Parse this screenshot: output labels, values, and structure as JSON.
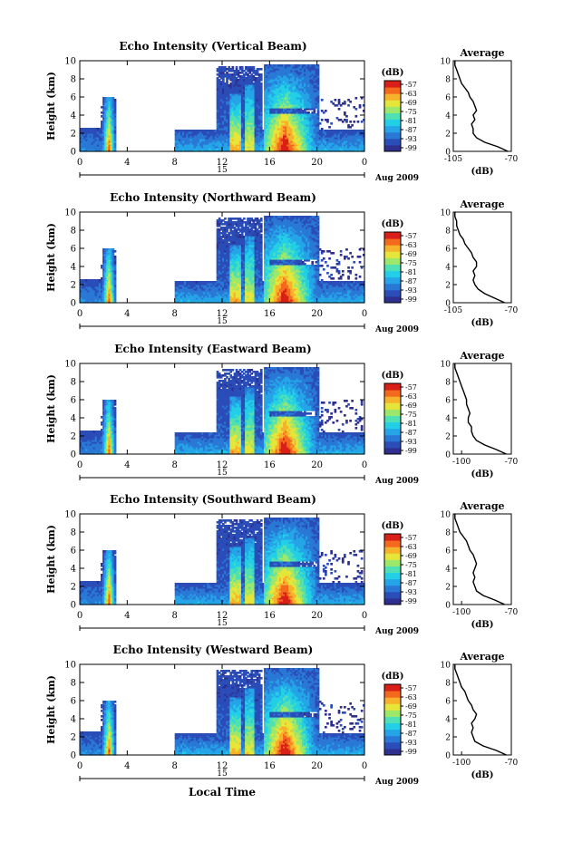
{
  "figure": {
    "x_label": "Local Time",
    "date_label": "15",
    "date_suffix": "Aug 2009",
    "colorbar_unit": "(dB)",
    "avg_title": "Average",
    "avg_xlabel": "(dB)"
  },
  "colors": {
    "scale": [
      "#2e2f8f",
      "#2a4db8",
      "#2a78d6",
      "#25a5e8",
      "#22cfe6",
      "#4fe0b4",
      "#9de86a",
      "#e6e63a",
      "#f7b22c",
      "#f36a1f",
      "#d92018"
    ]
  },
  "chart_data": [
    {
      "type": "heatmap",
      "title": "Echo Intensity (Vertical Beam)",
      "ylabel": "Height (km)",
      "xlabel": "Local Time",
      "x_ticks": [
        "0",
        "4",
        "8",
        "12",
        "16",
        "20",
        "0"
      ],
      "xlim": [
        0,
        24
      ],
      "y_ticks": [
        "0",
        "2",
        "4",
        "6",
        "8",
        "10"
      ],
      "ylim": [
        0,
        10
      ],
      "colorbar_ticks": [
        "-57",
        "-63",
        "-69",
        "-75",
        "-81",
        "-87",
        "-93",
        "-99"
      ],
      "avg": {
        "xlim": [
          -105,
          -70
        ],
        "x_ticks": [
          "-105",
          "-70"
        ],
        "y_ticks": [
          "0",
          "2",
          "4",
          "6",
          "8",
          "10"
        ],
        "profile": [
          [
            -72,
            0
          ],
          [
            -78,
            0.5
          ],
          [
            -86,
            1
          ],
          [
            -91,
            1.5
          ],
          [
            -93,
            2
          ],
          [
            -93,
            2.5
          ],
          [
            -94,
            3
          ],
          [
            -92,
            3.5
          ],
          [
            -93,
            4
          ],
          [
            -91,
            4.5
          ],
          [
            -92,
            5
          ],
          [
            -93,
            5.5
          ],
          [
            -95,
            6
          ],
          [
            -96,
            6.5
          ],
          [
            -98,
            7
          ],
          [
            -100,
            7.5
          ],
          [
            -101,
            8
          ],
          [
            -102,
            8.5
          ],
          [
            -103,
            9
          ],
          [
            -104,
            9.5
          ],
          [
            -104,
            10
          ]
        ]
      }
    },
    {
      "type": "heatmap",
      "title": "Echo Intensity (Northward Beam)",
      "ylabel": "Height (km)",
      "xlabel": "Local Time",
      "x_ticks": [
        "0",
        "4",
        "8",
        "12",
        "16",
        "20",
        "0"
      ],
      "xlim": [
        0,
        24
      ],
      "y_ticks": [
        "0",
        "2",
        "4",
        "6",
        "8",
        "10"
      ],
      "ylim": [
        0,
        10
      ],
      "colorbar_ticks": [
        "-57",
        "-63",
        "-69",
        "-75",
        "-81",
        "-87",
        "-93",
        "-99"
      ],
      "avg": {
        "xlim": [
          -105,
          -70
        ],
        "x_ticks": [
          "-105",
          "-70"
        ],
        "y_ticks": [
          "0",
          "2",
          "4",
          "6",
          "8",
          "10"
        ],
        "profile": [
          [
            -74,
            0
          ],
          [
            -80,
            0.5
          ],
          [
            -86,
            1
          ],
          [
            -90,
            1.5
          ],
          [
            -92,
            2
          ],
          [
            -93,
            2.5
          ],
          [
            -92,
            3
          ],
          [
            -93,
            3.5
          ],
          [
            -91,
            4
          ],
          [
            -91,
            4.5
          ],
          [
            -93,
            5
          ],
          [
            -94,
            5.5
          ],
          [
            -96,
            6
          ],
          [
            -98,
            6.5
          ],
          [
            -99,
            7
          ],
          [
            -101,
            7.5
          ],
          [
            -102,
            8
          ],
          [
            -103,
            8.5
          ],
          [
            -103,
            9
          ],
          [
            -104,
            9.5
          ],
          [
            -104,
            10
          ]
        ]
      }
    },
    {
      "type": "heatmap",
      "title": "Echo Intensity (Eastward Beam)",
      "ylabel": "Height (km)",
      "xlabel": "Local Time",
      "x_ticks": [
        "0",
        "4",
        "8",
        "12",
        "16",
        "20",
        "0"
      ],
      "xlim": [
        0,
        24
      ],
      "y_ticks": [
        "0",
        "2",
        "4",
        "6",
        "8",
        "10"
      ],
      "ylim": [
        0,
        10
      ],
      "colorbar_ticks": [
        "-57",
        "-63",
        "-69",
        "-75",
        "-81",
        "-87",
        "-93",
        "-99"
      ],
      "avg": {
        "xlim": [
          -105,
          -70
        ],
        "x_ticks": [
          "-100",
          "-70"
        ],
        "y_ticks": [
          "0",
          "2",
          "4",
          "6",
          "8",
          "10"
        ],
        "profile": [
          [
            -73,
            0
          ],
          [
            -79,
            0.5
          ],
          [
            -86,
            1
          ],
          [
            -91,
            1.5
          ],
          [
            -93,
            2
          ],
          [
            -94,
            2.5
          ],
          [
            -94,
            3
          ],
          [
            -96,
            3.5
          ],
          [
            -96,
            4
          ],
          [
            -95,
            4.5
          ],
          [
            -96,
            5
          ],
          [
            -97,
            5.5
          ],
          [
            -97,
            6
          ],
          [
            -98,
            6.5
          ],
          [
            -99,
            7
          ],
          [
            -100,
            7.5
          ],
          [
            -101,
            8
          ],
          [
            -102,
            8.5
          ],
          [
            -103,
            9
          ],
          [
            -104,
            9.5
          ],
          [
            -104,
            10
          ]
        ]
      }
    },
    {
      "type": "heatmap",
      "title": "Echo Intensity (Southward Beam)",
      "ylabel": "Height (km)",
      "xlabel": "Local Time",
      "x_ticks": [
        "0",
        "4",
        "8",
        "12",
        "16",
        "20",
        "0"
      ],
      "xlim": [
        0,
        24
      ],
      "y_ticks": [
        "0",
        "2",
        "4",
        "6",
        "8",
        "10"
      ],
      "ylim": [
        0,
        10
      ],
      "colorbar_ticks": [
        "-57",
        "-63",
        "-69",
        "-75",
        "-81",
        "-87",
        "-93",
        "-99"
      ],
      "avg": {
        "xlim": [
          -105,
          -70
        ],
        "x_ticks": [
          "-100",
          "-70"
        ],
        "y_ticks": [
          "0",
          "2",
          "4",
          "6",
          "8",
          "10"
        ],
        "profile": [
          [
            -74,
            0
          ],
          [
            -80,
            0.5
          ],
          [
            -87,
            1
          ],
          [
            -91,
            1.5
          ],
          [
            -92,
            2
          ],
          [
            -93,
            2.5
          ],
          [
            -92,
            3
          ],
          [
            -93,
            3.5
          ],
          [
            -92,
            4
          ],
          [
            -91,
            4.5
          ],
          [
            -92,
            5
          ],
          [
            -93,
            5.5
          ],
          [
            -95,
            6
          ],
          [
            -96,
            6.5
          ],
          [
            -97,
            7
          ],
          [
            -99,
            7.5
          ],
          [
            -101,
            8
          ],
          [
            -102,
            8.5
          ],
          [
            -103,
            9
          ],
          [
            -104,
            9.5
          ],
          [
            -104,
            10
          ]
        ]
      }
    },
    {
      "type": "heatmap",
      "title": "Echo Intensity (Westward Beam)",
      "ylabel": "Height (km)",
      "xlabel": "Local Time",
      "x_ticks": [
        "0",
        "4",
        "8",
        "12",
        "16",
        "20",
        "0"
      ],
      "xlim": [
        0,
        24
      ],
      "y_ticks": [
        "0",
        "2",
        "4",
        "6",
        "8",
        "10"
      ],
      "ylim": [
        0,
        10
      ],
      "colorbar_ticks": [
        "-57",
        "-63",
        "-69",
        "-75",
        "-81",
        "-87",
        "-93",
        "-99"
      ],
      "avg": {
        "xlim": [
          -105,
          -70
        ],
        "x_ticks": [
          "-100",
          "-70"
        ],
        "y_ticks": [
          "0",
          "2",
          "4",
          "6",
          "8",
          "10"
        ],
        "profile": [
          [
            -73,
            0
          ],
          [
            -79,
            0.5
          ],
          [
            -87,
            1
          ],
          [
            -92,
            1.5
          ],
          [
            -93,
            2
          ],
          [
            -94,
            2.5
          ],
          [
            -93,
            3
          ],
          [
            -94,
            3.5
          ],
          [
            -92,
            4
          ],
          [
            -91,
            4.5
          ],
          [
            -93,
            5
          ],
          [
            -94,
            5.5
          ],
          [
            -96,
            6
          ],
          [
            -97,
            6.5
          ],
          [
            -98,
            7
          ],
          [
            -100,
            7.5
          ],
          [
            -101,
            8
          ],
          [
            -102,
            8.5
          ],
          [
            -103,
            9
          ],
          [
            -104,
            9.5
          ],
          [
            -104,
            10
          ]
        ]
      }
    }
  ]
}
